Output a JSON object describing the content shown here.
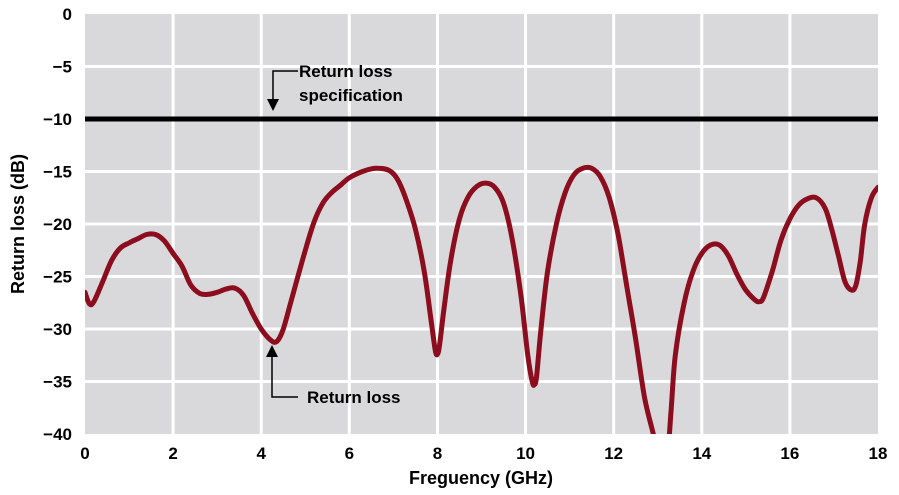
{
  "chart_data": {
    "type": "line",
    "xlabel": "Freguency (GHz)",
    "ylabel": "Return loss (dB)",
    "xlim": [
      0,
      18
    ],
    "ylim": [
      -40,
      0
    ],
    "x_ticks": [
      "0",
      "2",
      "4",
      "6",
      "8",
      "10",
      "12",
      "14",
      "16",
      "18"
    ],
    "y_ticks": [
      "0",
      "−5",
      "−10",
      "−15",
      "−20",
      "−25",
      "−30",
      "−35",
      "−40"
    ],
    "grid": true,
    "colors": {
      "plot_background": "#d9d9db",
      "grid": "#ffffff",
      "series": "#8b0d1e",
      "specification": "#000000"
    },
    "specification_line": {
      "y": -10
    },
    "annotations": {
      "spec_line1": "Return loss",
      "spec_line2": "specification",
      "curve": "Return loss"
    },
    "series": [
      {
        "x": [
          0,
          0.1,
          0.2,
          0.4,
          0.6,
          0.8,
          1.0,
          1.2,
          1.4,
          1.6,
          1.8,
          2.0,
          2.2,
          2.4,
          2.6,
          2.8,
          3.0,
          3.2,
          3.4,
          3.6,
          3.8,
          4.0,
          4.2,
          4.35,
          4.5,
          4.7,
          5.0,
          5.2,
          5.4,
          5.6,
          5.8,
          6.0,
          6.3,
          6.6,
          6.9,
          7.1,
          7.3,
          7.5,
          7.7,
          7.85,
          7.95,
          8.0,
          8.05,
          8.15,
          8.3,
          8.5,
          8.7,
          8.9,
          9.1,
          9.3,
          9.5,
          9.7,
          9.9,
          10.05,
          10.15,
          10.2,
          10.25,
          10.35,
          10.5,
          10.7,
          10.9,
          11.1,
          11.3,
          11.5,
          11.7,
          11.9,
          12.1,
          12.3,
          12.5,
          12.7,
          12.9,
          13.0,
          13.05,
          13.2,
          13.3,
          13.4,
          13.6,
          13.8,
          14.0,
          14.2,
          14.4,
          14.6,
          14.8,
          15.0,
          15.2,
          15.3,
          15.4,
          15.6,
          15.8,
          16.0,
          16.2,
          16.4,
          16.6,
          16.8,
          16.95,
          17.1,
          17.25,
          17.4,
          17.5,
          17.6,
          17.7,
          17.85,
          18.0
        ],
        "y": [
          -26.5,
          -27.6,
          -27.4,
          -25.5,
          -23.5,
          -22.3,
          -21.8,
          -21.4,
          -21.0,
          -21.0,
          -21.6,
          -22.8,
          -24.0,
          -25.8,
          -26.6,
          -26.7,
          -26.5,
          -26.2,
          -26.1,
          -26.8,
          -28.5,
          -30.0,
          -31.0,
          -31.2,
          -30.0,
          -27.0,
          -22.5,
          -19.8,
          -18.0,
          -17.0,
          -16.3,
          -15.6,
          -15.0,
          -14.7,
          -14.9,
          -15.8,
          -17.8,
          -20.5,
          -24.5,
          -29.0,
          -32.0,
          -32.4,
          -31.5,
          -28.0,
          -23.5,
          -19.5,
          -17.4,
          -16.4,
          -16.1,
          -16.5,
          -18.0,
          -21.5,
          -27.0,
          -32.5,
          -35.0,
          -35.3,
          -34.5,
          -30.0,
          -24.5,
          -20.0,
          -17.0,
          -15.3,
          -14.7,
          -14.7,
          -15.5,
          -17.5,
          -21.0,
          -26.0,
          -31.0,
          -36.5,
          -40.0,
          -42.0,
          -44.0,
          -43.0,
          -38.0,
          -32.5,
          -27.5,
          -24.5,
          -22.8,
          -22.0,
          -22.0,
          -23.0,
          -24.8,
          -26.3,
          -27.2,
          -27.4,
          -27.0,
          -24.5,
          -21.5,
          -19.5,
          -18.2,
          -17.6,
          -17.5,
          -18.5,
          -20.5,
          -23.0,
          -25.5,
          -26.3,
          -25.8,
          -23.5,
          -20.0,
          -17.5,
          -16.5
        ]
      }
    ]
  }
}
